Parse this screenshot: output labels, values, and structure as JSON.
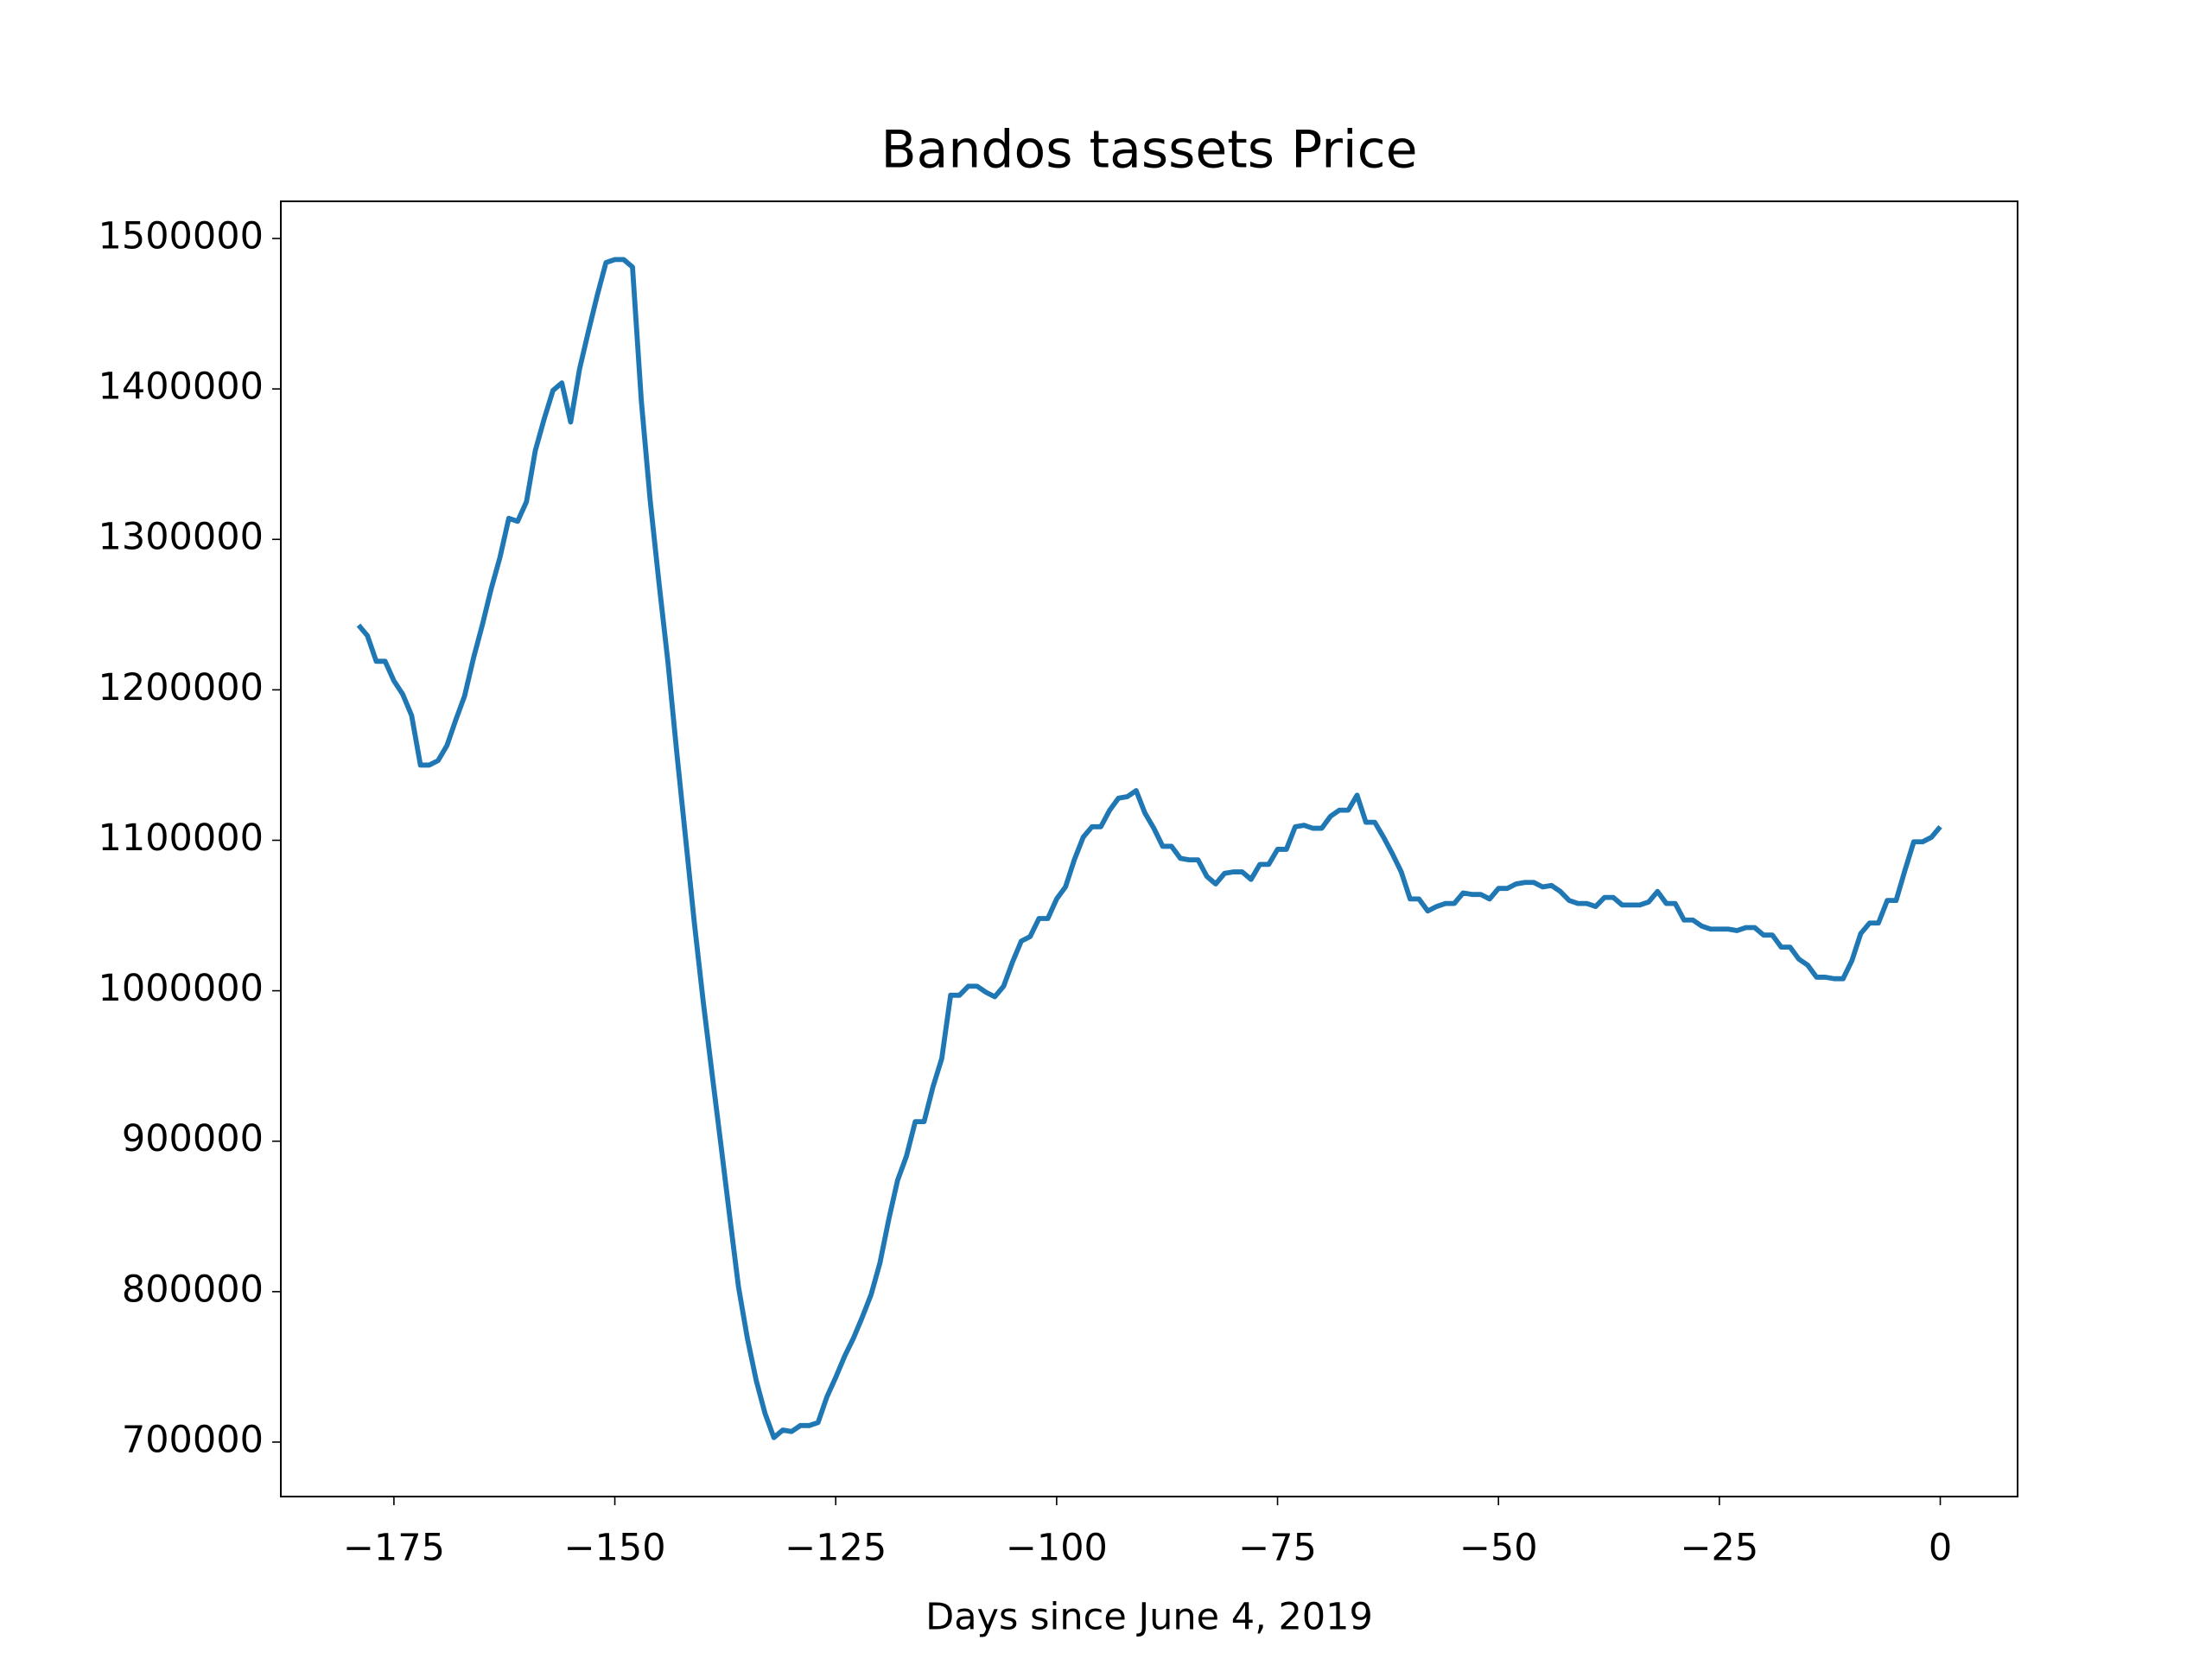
{
  "chart_data": {
    "type": "line",
    "title": "Bandos tassets Price",
    "xlabel": "Days since June 4, 2019",
    "color": "#1f77b4",
    "x": [
      -179,
      -178,
      -177,
      -176,
      -175,
      -174,
      -173,
      -172,
      -171,
      -170,
      -169,
      -168,
      -167,
      -166,
      -165,
      -164,
      -163,
      -162,
      -161,
      -160,
      -159,
      -158,
      -157,
      -156,
      -155,
      -154,
      -153,
      -152,
      -151,
      -150,
      -149,
      -148,
      -147,
      -146,
      -145,
      -144,
      -143,
      -142,
      -141,
      -140,
      -139,
      -138,
      -137,
      -136,
      -135,
      -134,
      -133,
      -132,
      -131,
      -130,
      -129,
      -128,
      -127,
      -126,
      -125,
      -124,
      -123,
      -122,
      -121,
      -120,
      -119,
      -118,
      -117,
      -116,
      -115,
      -114,
      -113,
      -112,
      -111,
      -110,
      -109,
      -108,
      -107,
      -106,
      -105,
      -104,
      -103,
      -102,
      -101,
      -100,
      -99,
      -98,
      -97,
      -96,
      -95,
      -94,
      -93,
      -92,
      -91,
      -90,
      -89,
      -88,
      -87,
      -86,
      -85,
      -84,
      -83,
      -82,
      -81,
      -80,
      -79,
      -78,
      -77,
      -76,
      -75,
      -74,
      -73,
      -72,
      -71,
      -70,
      -69,
      -68,
      -67,
      -66,
      -65,
      -64,
      -63,
      -62,
      -61,
      -60,
      -59,
      -58,
      -57,
      -56,
      -55,
      -54,
      -53,
      -52,
      -51,
      -50,
      -49,
      -48,
      -47,
      -46,
      -45,
      -44,
      -43,
      -42,
      -41,
      -40,
      -39,
      -38,
      -37,
      -36,
      -35,
      -34,
      -33,
      -32,
      -31,
      -30,
      -29,
      -28,
      -27,
      -26,
      -25,
      -24,
      -23,
      -22,
      -21,
      -20,
      -19,
      -18,
      -17,
      -16,
      -15,
      -14,
      -13,
      -12,
      -11,
      -10,
      -9,
      -8,
      -7,
      -6,
      -5,
      -4,
      -3,
      -2,
      -1,
      0
    ],
    "values": [
      1243000,
      1236000,
      1219000,
      1219000,
      1206000,
      1197000,
      1183000,
      1150000,
      1150000,
      1153000,
      1163000,
      1180000,
      1196000,
      1221000,
      1243000,
      1267000,
      1288000,
      1314000,
      1312000,
      1325000,
      1359000,
      1380000,
      1399000,
      1404000,
      1378000,
      1413000,
      1438000,
      1462000,
      1484000,
      1486000,
      1486000,
      1481000,
      1392000,
      1326000,
      1271000,
      1219000,
      1159000,
      1102000,
      1045000,
      993000,
      945000,
      898000,
      850000,
      803000,
      769000,
      741000,
      719000,
      703000,
      708000,
      707000,
      711000,
      711000,
      713000,
      730000,
      743000,
      757000,
      769000,
      783000,
      798000,
      819000,
      848000,
      874000,
      890000,
      913000,
      913000,
      936000,
      955000,
      997000,
      997000,
      1003000,
      1003000,
      999000,
      996000,
      1003000,
      1019000,
      1033000,
      1036000,
      1048000,
      1048000,
      1061000,
      1069000,
      1087000,
      1102000,
      1109000,
      1109000,
      1120000,
      1128000,
      1129000,
      1133000,
      1118000,
      1108000,
      1096000,
      1096000,
      1088000,
      1087000,
      1087000,
      1076000,
      1071000,
      1078000,
      1079000,
      1079000,
      1074000,
      1084000,
      1084000,
      1094000,
      1094000,
      1109000,
      1110000,
      1108000,
      1108000,
      1116000,
      1120000,
      1120000,
      1130000,
      1112000,
      1112000,
      1102000,
      1091000,
      1079000,
      1061000,
      1061000,
      1053000,
      1056000,
      1058000,
      1058000,
      1065000,
      1064000,
      1064000,
      1061000,
      1068000,
      1068000,
      1071000,
      1072000,
      1072000,
      1069000,
      1070000,
      1066000,
      1060000,
      1058000,
      1058000,
      1056000,
      1062000,
      1062000,
      1057000,
      1057000,
      1057000,
      1059000,
      1066000,
      1058000,
      1058000,
      1047000,
      1047000,
      1043000,
      1041000,
      1041000,
      1041000,
      1040000,
      1042000,
      1042000,
      1037000,
      1037000,
      1029000,
      1029000,
      1021000,
      1017000,
      1009000,
      1009000,
      1008000,
      1008000,
      1020000,
      1038000,
      1045000,
      1045000,
      1060000,
      1060000,
      1080000,
      1099000,
      1099000,
      1102000,
      1109000
    ],
    "xlim": [
      -187.8,
      8.75
    ],
    "ylim": [
      663800,
      1524700
    ],
    "xticks": [
      {
        "value": -175,
        "label": "−175"
      },
      {
        "value": -150,
        "label": "−150"
      },
      {
        "value": -125,
        "label": "−125"
      },
      {
        "value": -100,
        "label": "−100"
      },
      {
        "value": -75,
        "label": "−75"
      },
      {
        "value": -50,
        "label": "−50"
      },
      {
        "value": -25,
        "label": "−25"
      },
      0
    ],
    "yticks": [
      700000,
      800000,
      900000,
      1000000,
      1100000,
      1200000,
      1300000,
      1400000,
      1500000
    ]
  }
}
